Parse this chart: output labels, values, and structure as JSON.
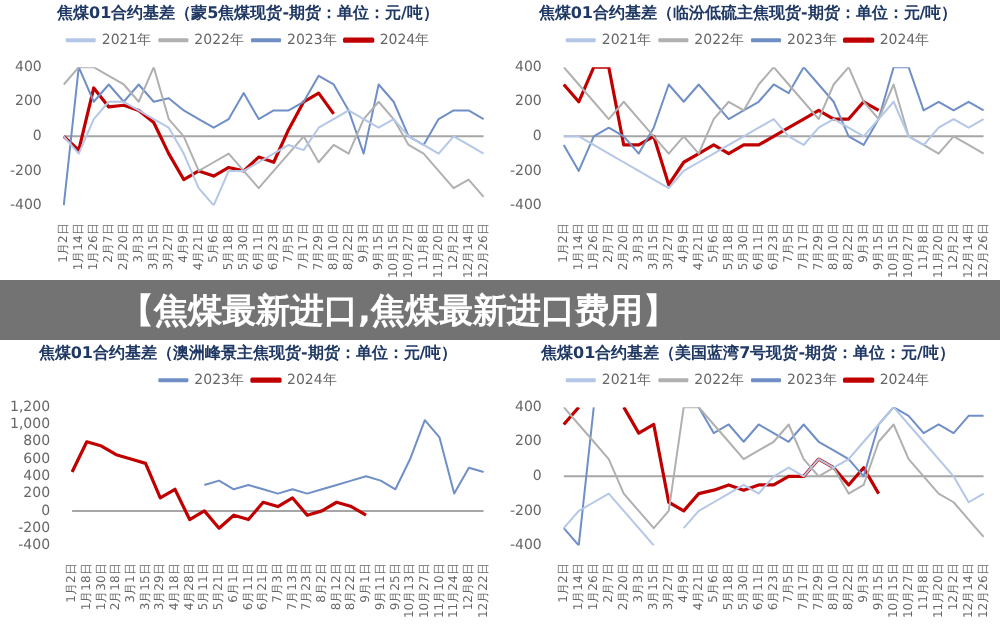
{
  "chart_data": [
    {
      "type": "line",
      "title": "焦煤01合约基差（蒙5焦煤现货-期货：单位：元/吨）",
      "legend": "top",
      "grid": false,
      "ylim": [
        -400,
        400
      ],
      "yticks": [
        -400,
        -200,
        0,
        200,
        400
      ],
      "ref_lines": [
        {
          "axis": "y",
          "value": 0,
          "color": "#a6a6a6"
        }
      ],
      "categories": [
        "1月2日",
        "1月14日",
        "1月26日",
        "2月7日",
        "2月20日",
        "3月3日",
        "3月15日",
        "3月27日",
        "4月9日",
        "4月21日",
        "5月6日",
        "5月18日",
        "5月30日",
        "6月11日",
        "6月23日",
        "7月5日",
        "7月17日",
        "7月29日",
        "8月10日",
        "8月22日",
        "9月3日",
        "9月15日",
        "10月15日",
        "10月27日",
        "11月8日",
        "11月20日",
        "12月2日",
        "12月14日",
        "12月26日"
      ],
      "series": [
        {
          "name": "2021年",
          "color": "#b4c7e7",
          "values": [
            0,
            -100,
            100,
            200,
            200,
            150,
            100,
            50,
            -100,
            -300,
            -400,
            -200,
            -200,
            -150,
            -100,
            -50,
            -80,
            50,
            100,
            150,
            100,
            50,
            100,
            0,
            -50,
            -100,
            0,
            -50,
            -100
          ]
        },
        {
          "name": "2022年",
          "color": "#b0b0b0",
          "values": [
            300,
            400,
            400,
            350,
            300,
            200,
            400,
            100,
            0,
            -200,
            -150,
            -100,
            -200,
            -300,
            -200,
            -100,
            0,
            -150,
            -50,
            -100,
            100,
            200,
            100,
            -50,
            -100,
            -200,
            -300,
            -250,
            -350
          ]
        },
        {
          "name": "2023年",
          "color": "#6f8fc6",
          "values": [
            -400,
            400,
            200,
            300,
            200,
            300,
            200,
            220,
            150,
            100,
            50,
            100,
            250,
            100,
            150,
            150,
            200,
            350,
            300,
            150,
            -100,
            300,
            200,
            0,
            -50,
            100,
            150,
            150,
            100
          ]
        },
        {
          "name": "2024年",
          "color": "#c00000",
          "values": [
            0,
            -80,
            280,
            170,
            180,
            150,
            80,
            -100,
            -250,
            -200,
            -230,
            -180,
            -200,
            -120,
            -150,
            40,
            200,
            250,
            130,
            null,
            null,
            null,
            null,
            null,
            null,
            null,
            null,
            null,
            null
          ]
        }
      ]
    },
    {
      "type": "line",
      "title": "焦煤01合约基差（临汾低硫主焦现货-期货：单位：元/吨）",
      "legend": "top",
      "grid": false,
      "ylim": [
        -400,
        400
      ],
      "yticks": [
        -400,
        -200,
        0,
        200,
        400
      ],
      "ref_lines": [
        {
          "axis": "y",
          "value": 0,
          "color": "#a6a6a6"
        }
      ],
      "categories": [
        "1月2日",
        "1月14日",
        "1月26日",
        "2月7日",
        "2月20日",
        "3月3日",
        "3月15日",
        "3月27日",
        "4月9日",
        "4月21日",
        "5月6日",
        "5月18日",
        "5月30日",
        "6月11日",
        "6月23日",
        "7月5日",
        "7月17日",
        "7月29日",
        "8月10日",
        "8月22日",
        "9月3日",
        "9月15日",
        "10月15日",
        "10月27日",
        "11月8日",
        "11月20日",
        "12月2日",
        "12月14日",
        "12月26日"
      ],
      "series": [
        {
          "name": "2021年",
          "color": "#b4c7e7",
          "values": [
            0,
            0,
            -50,
            -100,
            -150,
            -200,
            -250,
            -300,
            -200,
            -150,
            -100,
            -50,
            0,
            50,
            100,
            0,
            -50,
            50,
            100,
            50,
            0,
            100,
            200,
            0,
            -50,
            50,
            100,
            50,
            100
          ]
        },
        {
          "name": "2022年",
          "color": "#b0b0b0",
          "values": [
            400,
            300,
            200,
            100,
            200,
            100,
            0,
            -100,
            0,
            -100,
            100,
            200,
            150,
            300,
            400,
            300,
            200,
            100,
            300,
            400,
            200,
            100,
            300,
            0,
            -50,
            -100,
            0,
            -50,
            -100
          ]
        },
        {
          "name": "2023年",
          "color": "#6f8fc6",
          "values": [
            -50,
            -200,
            0,
            50,
            0,
            -100,
            50,
            300,
            200,
            300,
            200,
            100,
            150,
            200,
            300,
            250,
            400,
            300,
            200,
            0,
            -50,
            100,
            400,
            400,
            150,
            200,
            150,
            200,
            150
          ]
        },
        {
          "name": "2024年",
          "color": "#c00000",
          "values": [
            300,
            200,
            400,
            400,
            -50,
            -50,
            0,
            -280,
            -150,
            -100,
            -50,
            -100,
            -50,
            -50,
            0,
            50,
            100,
            150,
            100,
            100,
            200,
            150,
            null,
            null,
            null,
            null,
            null,
            null,
            null
          ]
        }
      ]
    },
    {
      "type": "other",
      "title": "【焦煤最新进口,焦煤最新进口费用】"
    },
    {
      "type": "line",
      "title": "焦煤01合约基差（澳洲峰景主焦现货-期货：单位：元/吨）",
      "legend": "top",
      "grid": false,
      "ylim": [
        -400,
        1200
      ],
      "yticks": [
        -400,
        -200,
        0,
        200,
        400,
        600,
        800,
        {
          "value": 1000,
          "label": "1,000"
        },
        {
          "value": 1200,
          "label": "1,200"
        }
      ],
      "ref_lines": [
        {
          "axis": "y",
          "value": 0,
          "color": "#a6a6a6"
        }
      ],
      "categories": [
        "1月2日",
        "1月18日",
        "1月30日",
        "2月18日",
        "3月1日",
        "3月15日",
        "3月29日",
        "4月18日",
        "4月28日",
        "5月11日",
        "5月21日",
        "6月1日",
        "6月11日",
        "6月21日",
        "7月3日",
        "7月13日",
        "7月23日",
        "8月2日",
        "8月12日",
        "8月22日",
        "9月1日",
        "9月11日",
        "9月25日",
        "10月13日",
        "10月27日",
        "11月10日",
        "11月24日",
        "12月8日",
        "12月22日"
      ],
      "series": [
        {
          "name": "2023年",
          "color": "#6f8fc6",
          "values": [
            null,
            null,
            null,
            null,
            null,
            null,
            null,
            null,
            null,
            300,
            350,
            250,
            300,
            250,
            200,
            250,
            200,
            250,
            300,
            350,
            400,
            350,
            250,
            600,
            1050,
            850,
            200,
            500,
            450
          ]
        },
        {
          "name": "2024年",
          "color": "#c00000",
          "values": [
            450,
            800,
            750,
            650,
            600,
            550,
            150,
            250,
            -100,
            0,
            -200,
            -50,
            -100,
            100,
            50,
            150,
            -50,
            0,
            100,
            50,
            -50,
            null,
            null,
            null,
            null,
            null,
            null,
            null,
            null
          ]
        }
      ]
    },
    {
      "type": "line",
      "title": "焦煤01合约基差（美国蓝湾7号现货-期货：单位：元/吨）",
      "legend": "top",
      "grid": false,
      "ylim": [
        -400,
        400
      ],
      "yticks": [
        -400,
        -200,
        0,
        200,
        400
      ],
      "ref_lines": [
        {
          "axis": "y",
          "value": 0,
          "color": "#a6a6a6"
        }
      ],
      "categories": [
        "1月2日",
        "1月14日",
        "1月26日",
        "2月7日",
        "2月20日",
        "3月3日",
        "3月15日",
        "3月27日",
        "4月9日",
        "4月21日",
        "5月6日",
        "5月18日",
        "5月30日",
        "6月11日",
        "6月23日",
        "7月5日",
        "7月17日",
        "7月29日",
        "8月10日",
        "8月22日",
        "9月3日",
        "9月15日",
        "10月15日",
        "10月27日",
        "11月8日",
        "11月20日",
        "12月2日",
        "12月14日",
        "12月26日"
      ],
      "series": [
        {
          "name": "2021年",
          "color": "#b4c7e7",
          "values": [
            -300,
            -200,
            -150,
            -100,
            -200,
            -300,
            -400,
            null,
            -300,
            -200,
            -150,
            -100,
            -50,
            -100,
            0,
            50,
            0,
            100,
            50,
            100,
            200,
            300,
            400,
            300,
            200,
            100,
            0,
            -150,
            -100
          ]
        },
        {
          "name": "2022年",
          "color": "#b0b0b0",
          "values": [
            400,
            300,
            200,
            100,
            -100,
            -200,
            -300,
            -200,
            400,
            400,
            300,
            200,
            100,
            150,
            200,
            300,
            100,
            0,
            50,
            -100,
            -50,
            200,
            300,
            100,
            0,
            -100,
            -150,
            -250,
            -350
          ]
        },
        {
          "name": "2023年",
          "color": "#6f8fc6",
          "values": [
            -300,
            -400,
            400,
            null,
            null,
            null,
            null,
            null,
            null,
            400,
            250,
            300,
            200,
            300,
            250,
            200,
            300,
            200,
            150,
            100,
            0,
            300,
            400,
            350,
            250,
            300,
            250,
            350,
            350
          ]
        },
        {
          "name": "2024年",
          "color": "#c00000",
          "values": [
            300,
            400,
            null,
            null,
            400,
            250,
            300,
            -150,
            -200,
            -100,
            -80,
            -50,
            -80,
            -50,
            -50,
            0,
            0,
            100,
            50,
            -50,
            50,
            -100,
            null,
            null,
            null,
            null,
            null,
            null,
            null
          ]
        }
      ]
    }
  ]
}
